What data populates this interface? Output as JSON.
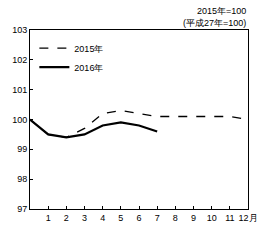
{
  "chart_data": {
    "type": "line",
    "annotations": [
      "2015年=100",
      "(平成27年=100)"
    ],
    "series": [
      {
        "name": "2015年",
        "color": "#000000",
        "line_style": "dashed",
        "x": [
          0,
          1,
          2,
          3,
          4,
          5,
          6,
          7,
          8,
          9,
          10,
          11,
          12
        ],
        "values": [
          100,
          99.5,
          99.4,
          99.7,
          100.2,
          100.3,
          100.2,
          100.1,
          100.1,
          100.1,
          100.1,
          100.1,
          100.0
        ]
      },
      {
        "name": "2016年",
        "color": "#000000",
        "line_style": "solid",
        "x": [
          0,
          1,
          2,
          3,
          4,
          5,
          6,
          7
        ],
        "values": [
          100,
          99.5,
          99.4,
          99.5,
          99.8,
          99.9,
          99.8,
          99.6
        ]
      }
    ],
    "xlim": [
      0,
      12
    ],
    "xticks": [
      1,
      2,
      3,
      4,
      5,
      6,
      7,
      8,
      9,
      10,
      11,
      {
        "value": 12,
        "label": "12月"
      }
    ],
    "ylim": [
      97,
      103
    ],
    "yticks": [
      97,
      98,
      99,
      100,
      101,
      102,
      103
    ],
    "grid": false,
    "legend": "upper left"
  }
}
